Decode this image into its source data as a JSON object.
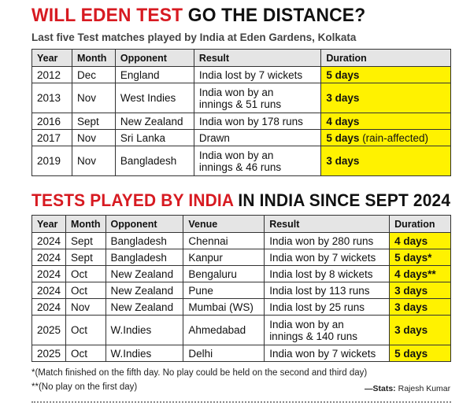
{
  "headline1": {
    "red": "WILL EDEN TEST",
    "black": " GO THE DISTANCE?"
  },
  "subhead1": "Last five Test matches played by India at Eden Gardens, Kolkata",
  "table1": {
    "headers": [
      "Year",
      "Month",
      "Opponent",
      "Result",
      "Duration"
    ],
    "rows": [
      {
        "year": "2012",
        "month": "Dec",
        "opponent": "England",
        "result": "India lost by 7 wickets",
        "duration": "5 days",
        "extra": ""
      },
      {
        "year": "2013",
        "month": "Nov",
        "opponent": "West Indies",
        "result_l1": "India won by an",
        "result_l2": "innings & 51 runs",
        "duration": "3 days",
        "extra": ""
      },
      {
        "year": "2016",
        "month": "Sept",
        "opponent": "New Zealand",
        "result": "India won by 178 runs",
        "duration": "4 days",
        "extra": ""
      },
      {
        "year": "2017",
        "month": "Nov",
        "opponent": "Sri Lanka",
        "result": "Drawn",
        "duration": "5 days",
        "extra": "(rain-affected)"
      },
      {
        "year": "2019",
        "month": "Nov",
        "opponent": "Bangladesh",
        "result_l1": "India won by an",
        "result_l2": "innings & 46 runs",
        "duration": "3 days",
        "extra": ""
      }
    ]
  },
  "headline2": {
    "red": "TESTS PLAYED BY INDIA",
    "black": " IN INDIA SINCE SEPT 2024"
  },
  "table2": {
    "headers": [
      "Year",
      "Month",
      "Opponent",
      "Venue",
      "Result",
      "Duration"
    ],
    "rows": [
      {
        "year": "2024",
        "month": "Sept",
        "opponent": "Bangladesh",
        "venue": "Chennai",
        "result": "India won by 280 runs",
        "duration": "4 days"
      },
      {
        "year": "2024",
        "month": "Sept",
        "opponent": "Bangladesh",
        "venue": "Kanpur",
        "result": "India won by 7 wickets",
        "duration": "5 days*"
      },
      {
        "year": "2024",
        "month": "Oct",
        "opponent": "New Zealand",
        "venue": "Bengaluru",
        "result": "India lost by 8 wickets",
        "duration": "4 days**"
      },
      {
        "year": "2024",
        "month": "Oct",
        "opponent": "New Zealand",
        "venue": "Pune",
        "result": "India lost by 113 runs",
        "duration": "3 days"
      },
      {
        "year": "2024",
        "month": "Nov",
        "opponent": "New Zealand",
        "venue": "Mumbai (WS)",
        "result": "India lost by 25 runs",
        "duration": "3 days"
      },
      {
        "year": "2025",
        "month": "Oct",
        "opponent": "W.Indies",
        "venue": "Ahmedabad",
        "result_l1": "India won by an",
        "result_l2": "innings & 140 runs",
        "duration": "3 days"
      },
      {
        "year": "2025",
        "month": "Oct",
        "opponent": "W.Indies",
        "venue": "Delhi",
        "result": "India won by 7 wickets",
        "duration": "5 days"
      }
    ]
  },
  "footnote1": "*(Match finished on the fifth day. No play could be held on the second and third day)",
  "footnote2": "**(No play on the first day)",
  "credit": {
    "label": "—Stats:",
    "name": " Rajesh Kumar"
  },
  "colors": {
    "accent_red": "#d71a21",
    "highlight_yellow": "#fff200",
    "header_gray": "#e5e5e5"
  }
}
